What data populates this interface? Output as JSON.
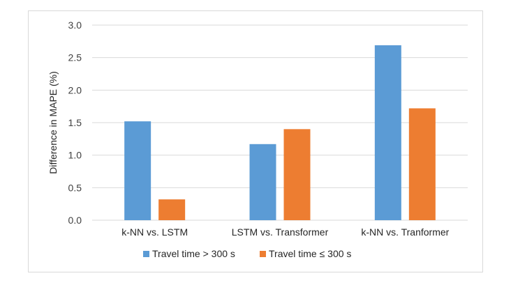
{
  "chart_data": {
    "type": "bar",
    "categories": [
      "k-NN vs. LSTM",
      "LSTM vs. Transformer",
      "k-NN vs. Tranformer"
    ],
    "series": [
      {
        "name": "Travel time > 300 s",
        "values": [
          1.52,
          1.17,
          2.69
        ],
        "color": "#5b9bd5"
      },
      {
        "name": "Travel time ≤ 300 s",
        "values": [
          0.32,
          1.4,
          1.72
        ],
        "color": "#ed7d31"
      }
    ],
    "title": "",
    "xlabel": "",
    "ylabel": "Difference in MAPE  (%)",
    "ylim": [
      0,
      3.0
    ],
    "yticks": [
      "0.0",
      "0.5",
      "1.0",
      "1.5",
      "2.0",
      "2.5",
      "3.0"
    ],
    "grid": true,
    "legend_position": "bottom"
  }
}
